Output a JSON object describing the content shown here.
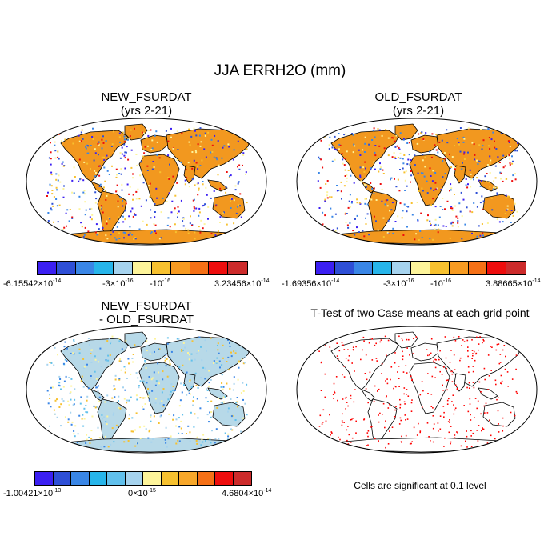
{
  "title": "JJA ERRH2O (mm)",
  "panels": [
    {
      "title_line1": "NEW_FSURDAT",
      "title_line2": "(yrs 2-21)",
      "label_min_mant": "-6.15542×10",
      "label_min_exp": "-14",
      "label_mid1_mant": "-3×10",
      "label_mid1_exp": "-16",
      "label_mid2_mant": "-10",
      "label_mid2_exp": "-16",
      "label_max_mant": "3.23456×10",
      "label_max_exp": "-14"
    },
    {
      "title_line1": "OLD_FSURDAT",
      "title_line2": "(yrs 2-21)",
      "label_min_mant": "-1.69356×10",
      "label_min_exp": "-14",
      "label_mid1_mant": "-3×10",
      "label_mid1_exp": "-16",
      "label_mid2_mant": "-10",
      "label_mid2_exp": "-16",
      "label_max_mant": "3.88665×10",
      "label_max_exp": "-14"
    },
    {
      "title_line1": "NEW_FSURDAT",
      "title_line2": "- OLD_FSURDAT",
      "label_min_mant": "-1.00421×10",
      "label_min_exp": "-13",
      "label_mid_mant": "0×10",
      "label_mid_exp": "-15",
      "label_max_mant": "4.6804×10",
      "label_max_exp": "-14"
    },
    {
      "title_line1": "T-Test of two Case means at each grid point",
      "note": "Cells are significant at 0.1 level"
    }
  ],
  "colors": {
    "colorbar_10": [
      "#3b1ff2",
      "#2e4fd6",
      "#3a86e6",
      "#27b5ea",
      "#a6d3ee",
      "#fdf49a",
      "#f7c12f",
      "#f79b22",
      "#f57016",
      "#ee0d0d",
      "#cc2b2b"
    ],
    "colorbar_12": [
      "#3b1ff2",
      "#2e4fd6",
      "#3a86e6",
      "#27b5ea",
      "#61c0ec",
      "#a6d3ee",
      "#fdf49a",
      "#f7c12f",
      "#f7a72a",
      "#f57016",
      "#ee0d0d",
      "#cc2b2b"
    ],
    "land_top": "#f2981f",
    "land_diff": "#b7d9e8",
    "significance": "#ff0000"
  }
}
